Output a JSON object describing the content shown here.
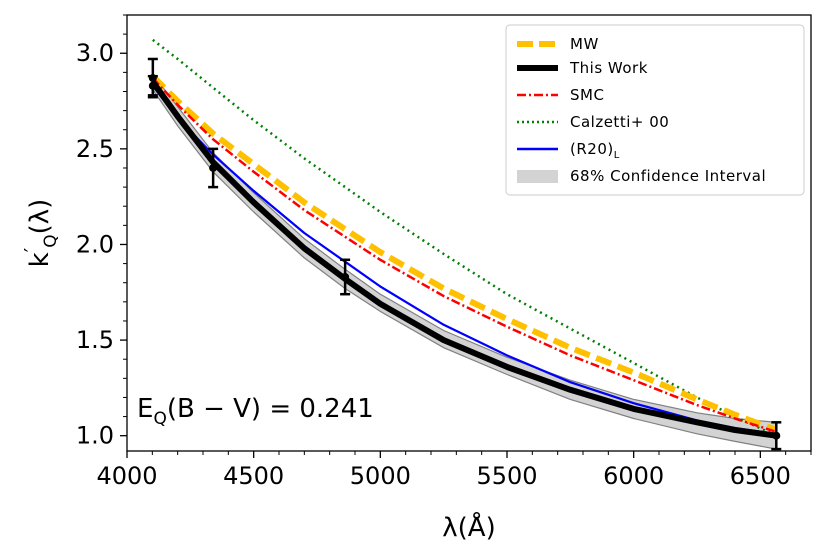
{
  "chart_data": {
    "type": "line",
    "xlabel": "λ(Å)",
    "ylabel": "k′Q(λ)",
    "ylabel_main": "k",
    "ylabel_prime": "′",
    "ylabel_sub": "Q",
    "ylabel_tail": "(λ)",
    "xlim": [
      4000,
      6700
    ],
    "ylim": [
      0.92,
      3.2
    ],
    "xticks": [
      4000,
      4500,
      5000,
      5500,
      6000,
      6500
    ],
    "yticks": [
      1.0,
      1.5,
      2.0,
      2.5,
      3.0
    ],
    "ytick_labels": [
      "1.0",
      "1.5",
      "2.0",
      "2.5",
      "3.0"
    ],
    "x_minor_step": 100,
    "y_minor_step": 0.1,
    "series": [
      {
        "name": "MW",
        "style": "dashed-thick",
        "color": "#ffc000",
        "x": [
          4102,
          4200,
          4340,
          4500,
          4700,
          4861,
          5000,
          5250,
          5500,
          5750,
          6000,
          6250,
          6400,
          6563
        ],
        "y": [
          2.88,
          2.75,
          2.58,
          2.42,
          2.22,
          2.08,
          1.96,
          1.77,
          1.61,
          1.46,
          1.33,
          1.19,
          1.11,
          1.03
        ]
      },
      {
        "name": "This Work",
        "style": "solid-thick",
        "color": "#000000",
        "x": [
          4102,
          4200,
          4340,
          4500,
          4700,
          4861,
          5000,
          5250,
          5500,
          5750,
          6000,
          6250,
          6400,
          6563
        ],
        "y": [
          2.85,
          2.67,
          2.43,
          2.22,
          1.98,
          1.82,
          1.69,
          1.5,
          1.36,
          1.24,
          1.14,
          1.07,
          1.03,
          1.0
        ]
      },
      {
        "name": "SMC",
        "style": "dashdot",
        "color": "#ff0000",
        "x": [
          4102,
          4200,
          4340,
          4500,
          4700,
          4861,
          5000,
          5250,
          5500,
          5750,
          6000,
          6250,
          6400,
          6563
        ],
        "y": [
          2.87,
          2.73,
          2.55,
          2.38,
          2.18,
          2.04,
          1.92,
          1.73,
          1.57,
          1.42,
          1.29,
          1.16,
          1.09,
          1.02
        ]
      },
      {
        "name": "Calzetti+ 00",
        "style": "dotted",
        "color": "#008000",
        "x": [
          4102,
          4200,
          4340,
          4500,
          4700,
          4861,
          5000,
          5250,
          5500,
          5750,
          6000,
          6250,
          6400,
          6563
        ],
        "y": [
          3.07,
          2.97,
          2.82,
          2.65,
          2.45,
          2.3,
          2.17,
          1.95,
          1.74,
          1.56,
          1.38,
          1.2,
          1.1,
          1.0
        ]
      },
      {
        "name": "(R20)",
        "name_sub": "L",
        "style": "solid",
        "color": "#0000ff",
        "x": [
          4102,
          4200,
          4340,
          4500,
          4700,
          4861,
          5000,
          5250,
          5500,
          5750,
          6000,
          6250,
          6400,
          6563
        ],
        "y": [
          2.83,
          2.66,
          2.47,
          2.28,
          2.06,
          1.91,
          1.78,
          1.58,
          1.42,
          1.28,
          1.17,
          1.08,
          1.04,
          1.01
        ]
      }
    ],
    "confidence_band": {
      "name": "68% Confidence Interval",
      "color": "#d3d3d3",
      "x": [
        4102,
        4200,
        4340,
        4500,
        4700,
        4861,
        5000,
        5250,
        5500,
        5750,
        6000,
        6250,
        6400,
        6563
      ],
      "lower": [
        2.81,
        2.62,
        2.38,
        2.17,
        1.93,
        1.77,
        1.65,
        1.46,
        1.32,
        1.19,
        1.09,
        1.01,
        0.97,
        0.93
      ],
      "upper": [
        2.89,
        2.72,
        2.48,
        2.27,
        2.03,
        1.87,
        1.74,
        1.55,
        1.41,
        1.29,
        1.19,
        1.12,
        1.09,
        1.07
      ]
    },
    "data_points": [
      {
        "x": 4102,
        "y": 2.87,
        "err": 0.1
      },
      {
        "x": 4102,
        "y": 2.83,
        "err": 0.05
      },
      {
        "x": 4340,
        "y": 2.4,
        "err": 0.1
      },
      {
        "x": 4861,
        "y": 1.83,
        "err": 0.09
      },
      {
        "x": 6563,
        "y": 1.0,
        "err": 0.07
      }
    ],
    "legend": {
      "placement": "top-right",
      "entries": [
        "MW",
        "This Work",
        "SMC",
        "Calzetti+ 00",
        "(R20)",
        "68% Confidence Interval"
      ]
    },
    "annotation": {
      "prefix": "E",
      "sub": "Q",
      "text": "(B − V) = 0.241"
    }
  }
}
